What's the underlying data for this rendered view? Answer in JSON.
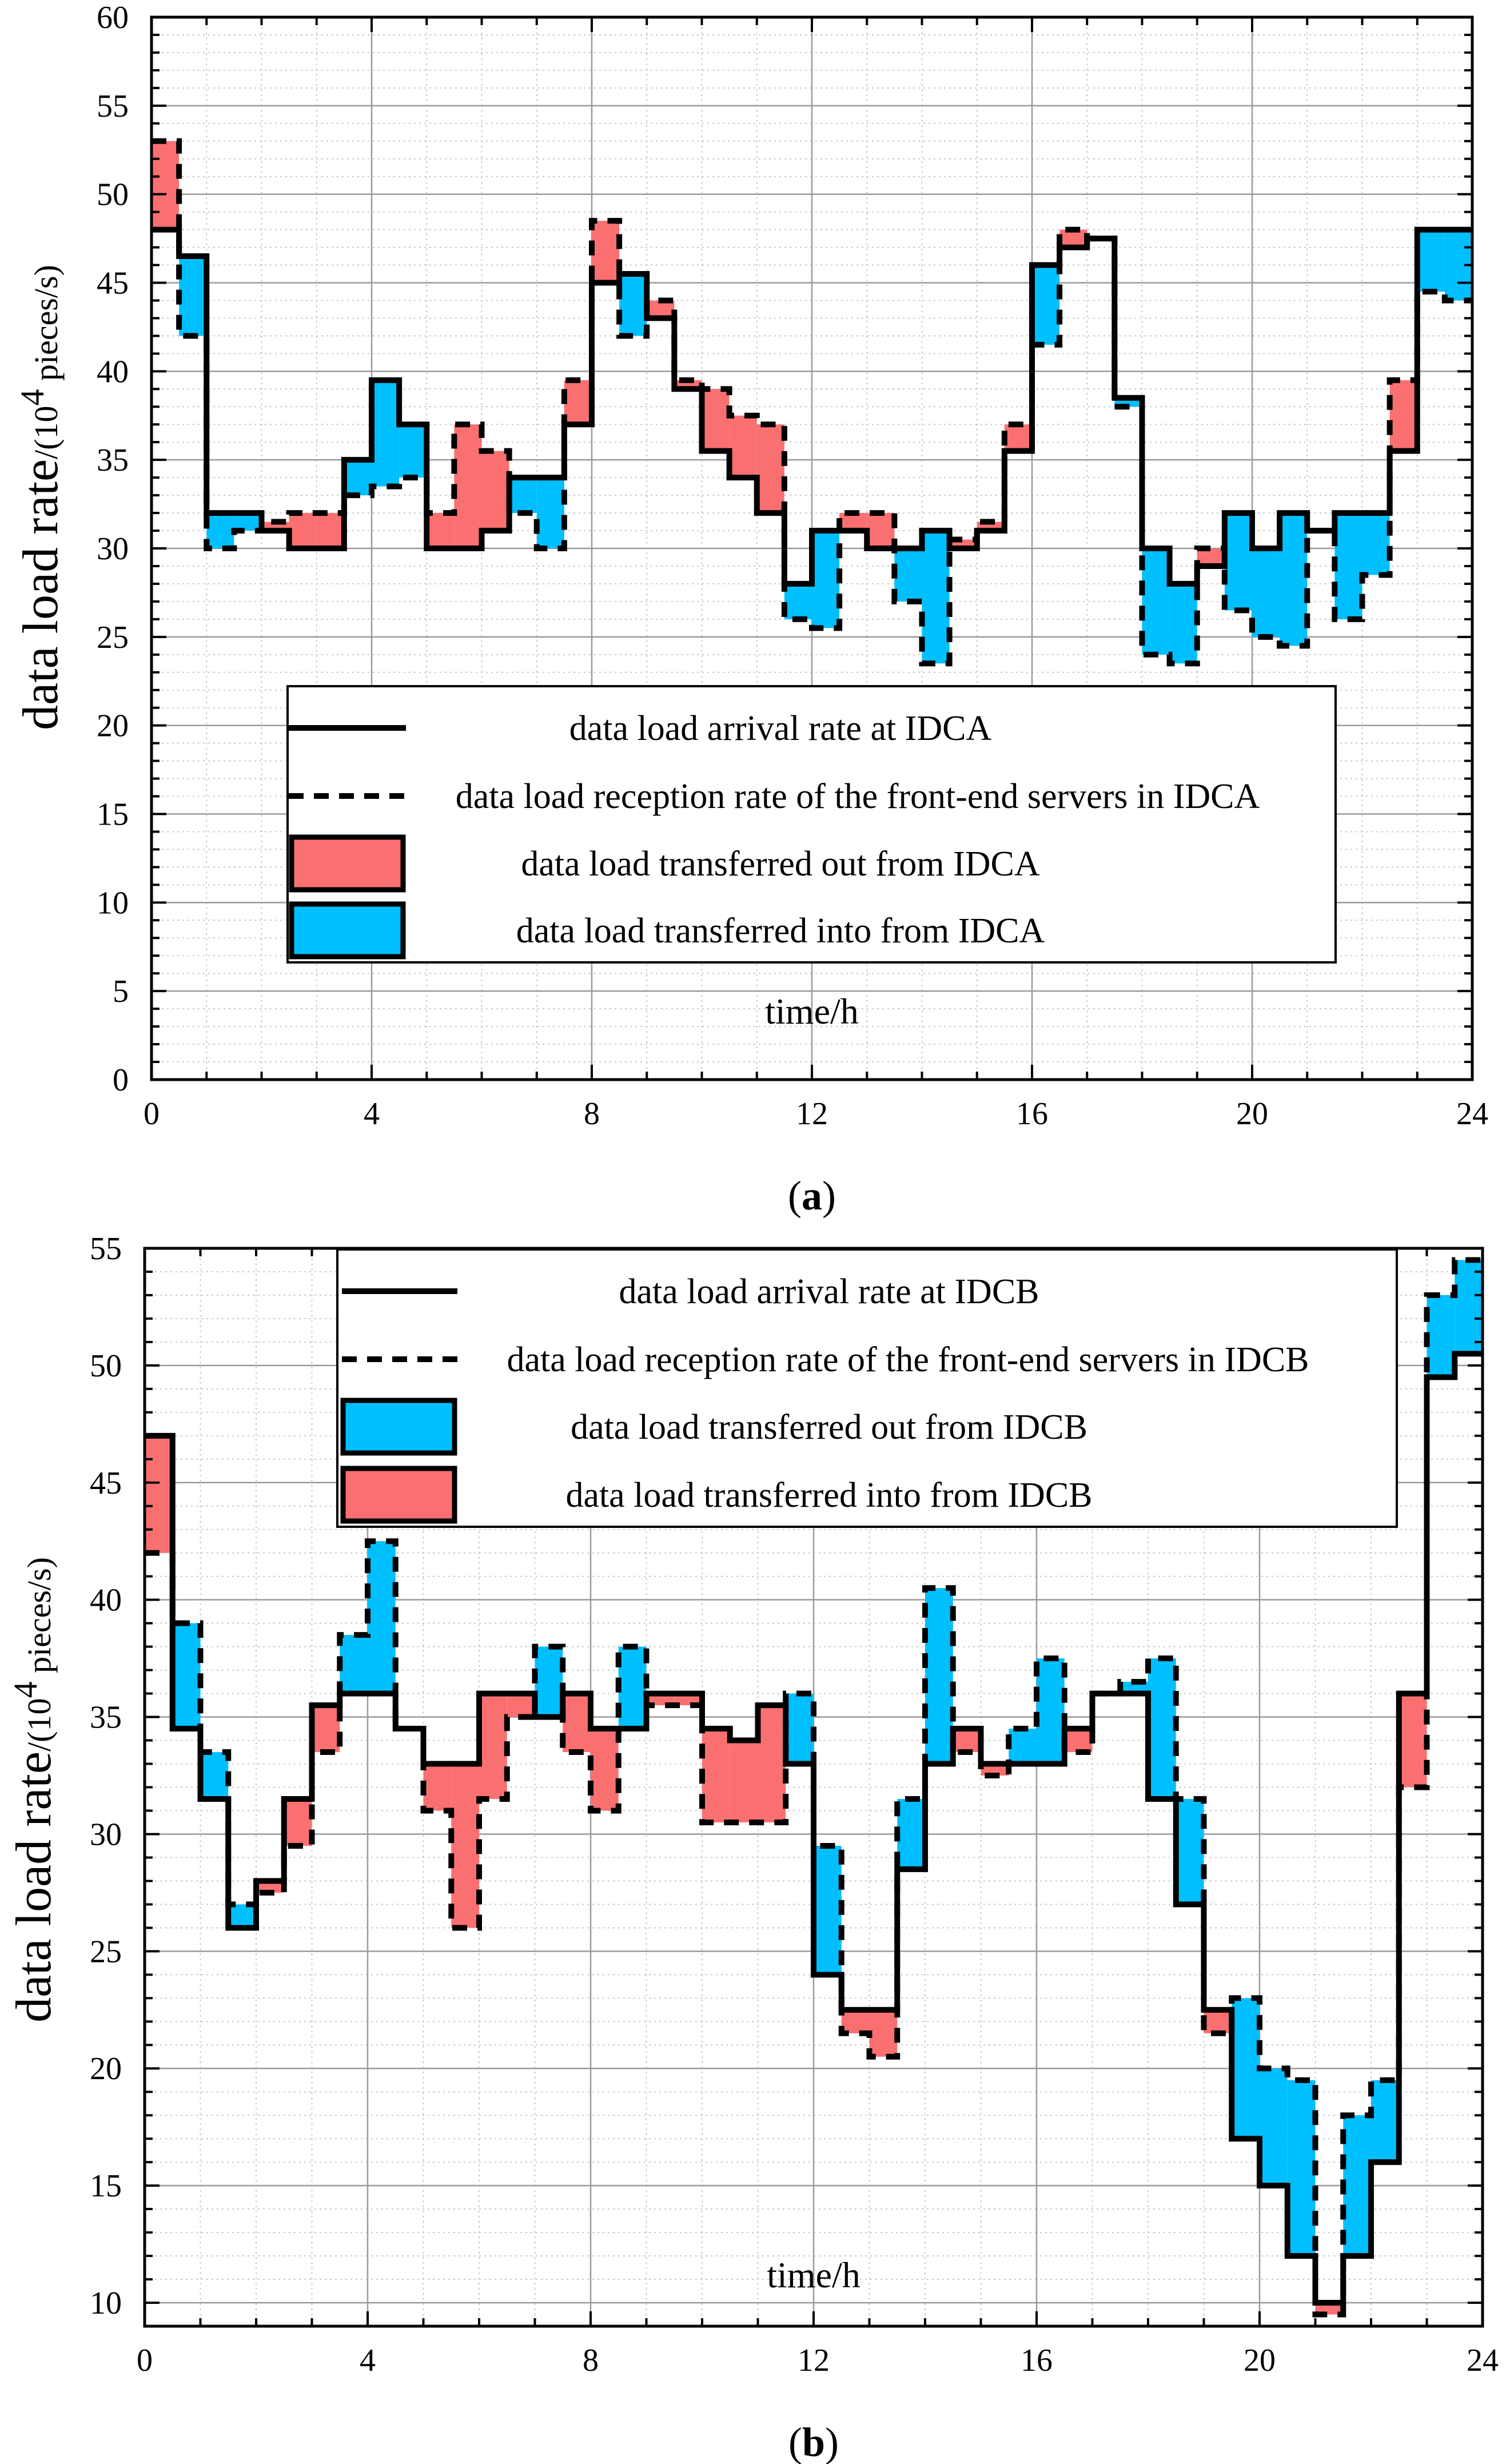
{
  "colors": {
    "red": "#FA7070",
    "blue": "#00BFFF",
    "grid": "#9a9a9a",
    "minorGrid": "#c8c8c8",
    "axis": "#000000"
  },
  "chart_data": [
    {
      "type": "step-area",
      "panel_label": "a",
      "ylabel_main": "data load rate",
      "ylabel_unit_prefix": "/(10",
      "ylabel_unit_exp": "4",
      "ylabel_unit_suffix": " pieces/s)",
      "xlabel": "time/h",
      "xlim": [
        0,
        24
      ],
      "ylim": [
        0,
        60
      ],
      "xticks": [
        "0",
        "4",
        "8",
        "12",
        "16",
        "20",
        "24"
      ],
      "yticks": [
        "0",
        "5",
        "10",
        "15",
        "20",
        "25",
        "30",
        "35",
        "40",
        "45",
        "50",
        "55",
        "60"
      ],
      "x_steps": [
        0,
        0.5,
        1,
        1.5,
        2,
        2.5,
        3,
        3.5,
        4,
        4.5,
        5,
        5.5,
        6,
        6.5,
        7,
        7.5,
        8,
        8.5,
        9,
        9.5,
        10,
        10.5,
        11,
        11.5,
        12,
        12.5,
        13,
        13.5,
        14,
        14.5,
        15,
        15.5,
        16,
        16.5,
        17,
        17.5,
        18,
        18.5,
        19,
        19.5,
        20,
        20.5,
        21,
        21.5,
        22,
        22.5,
        23,
        23.5,
        24
      ],
      "series": [
        {
          "name": "data load arrival rate at IDCA",
          "style": "solid",
          "values": [
            48,
            46.5,
            32,
            32,
            31,
            30,
            30,
            35,
            39.5,
            37,
            30,
            30,
            31,
            34,
            34,
            37,
            45,
            45.5,
            43,
            39,
            35.5,
            34,
            32,
            28,
            31,
            31,
            30,
            30,
            31,
            30,
            31,
            35.5,
            46,
            47,
            47.5,
            38.5,
            30,
            28,
            29,
            32,
            30,
            32,
            31,
            32,
            32,
            35.5,
            48,
            48
          ]
        },
        {
          "name": "data load reception rate of the front-end servers in IDCA",
          "style": "dashed",
          "values": [
            53,
            42,
            30,
            31,
            31.5,
            32,
            32,
            33,
            33.5,
            34,
            32,
            37,
            35.5,
            32,
            30,
            39.5,
            48.5,
            42,
            44,
            39.5,
            39,
            37.5,
            37,
            26,
            25.5,
            32,
            32,
            27,
            23.5,
            30.5,
            31.5,
            37,
            41.5,
            48,
            47.5,
            38,
            24,
            23.5,
            30,
            26.5,
            25,
            24.5,
            31,
            26,
            28.5,
            39.5,
            44.5,
            44
          ]
        }
      ],
      "legend": [
        {
          "label": "data load arrival rate at IDCA",
          "kind": "solid"
        },
        {
          "label": "data load reception rate of the front-end servers in IDCA",
          "kind": "dashed"
        },
        {
          "label": "data load transferred out from IDCA",
          "kind": "red"
        },
        {
          "label": "data load transferred into from IDCA",
          "kind": "blue"
        }
      ],
      "fill_rule": "red where reception > arrival, blue where reception < arrival"
    },
    {
      "type": "step-area",
      "panel_label": "b",
      "ylabel_main": "data load rate",
      "ylabel_unit_prefix": "/(10",
      "ylabel_unit_exp": "4",
      "ylabel_unit_suffix": " pieces/s)",
      "xlabel": "time/h",
      "xlim": [
        0,
        24
      ],
      "ylim": [
        9,
        55
      ],
      "xticks": [
        "0",
        "4",
        "8",
        "12",
        "16",
        "20",
        "24"
      ],
      "yticks": [
        "10",
        "15",
        "20",
        "25",
        "30",
        "35",
        "40",
        "45",
        "50",
        "55"
      ],
      "x_steps": [
        0,
        0.5,
        1,
        1.5,
        2,
        2.5,
        3,
        3.5,
        4,
        4.5,
        5,
        5.5,
        6,
        6.5,
        7,
        7.5,
        8,
        8.5,
        9,
        9.5,
        10,
        10.5,
        11,
        11.5,
        12,
        12.5,
        13,
        13.5,
        14,
        14.5,
        15,
        15.5,
        16,
        16.5,
        17,
        17.5,
        18,
        18.5,
        19,
        19.5,
        20,
        20.5,
        21,
        21.5,
        22,
        22.5,
        23,
        23.5,
        24
      ],
      "series": [
        {
          "name": "data load arrival rate at IDCB",
          "style": "solid",
          "values": [
            47,
            34.5,
            31.5,
            26,
            28,
            31.5,
            35.5,
            36,
            36,
            34.5,
            33,
            33,
            36,
            36,
            35,
            36,
            34.5,
            34.5,
            36,
            36,
            34.5,
            34,
            35.5,
            33,
            24,
            22.5,
            22.5,
            28.5,
            33,
            34.5,
            33,
            33,
            33,
            34.5,
            36,
            36,
            31.5,
            27,
            22.5,
            17,
            15,
            12,
            10,
            12,
            16,
            36,
            49.5,
            50.5
          ]
        },
        {
          "name": "data load reception rate of the front-end servers in IDCB",
          "style": "dashed",
          "values": [
            42,
            39,
            33.5,
            27,
            27.5,
            29.5,
            33.5,
            38.5,
            42.5,
            34.5,
            31,
            26,
            31.5,
            35,
            38,
            33.5,
            31,
            38,
            35.5,
            35.5,
            30.5,
            30.5,
            30.5,
            36,
            29.5,
            21.5,
            20.5,
            31.5,
            40.5,
            33.5,
            32.5,
            34.5,
            37.5,
            33.5,
            36,
            36.5,
            37.5,
            31.5,
            21.5,
            23,
            20,
            19.5,
            9.5,
            18,
            19.5,
            32,
            53,
            54.5
          ]
        }
      ],
      "legend": [
        {
          "label": "data load arrival rate at IDCB",
          "kind": "solid"
        },
        {
          "label": "data load reception rate of the front-end servers in IDCB",
          "kind": "dashed"
        },
        {
          "label": "data load transferred out from IDCB",
          "kind": "blue"
        },
        {
          "label": "data load transferred into from IDCB",
          "kind": "red"
        }
      ],
      "fill_rule": "blue where reception > arrival, red where reception < arrival"
    }
  ]
}
